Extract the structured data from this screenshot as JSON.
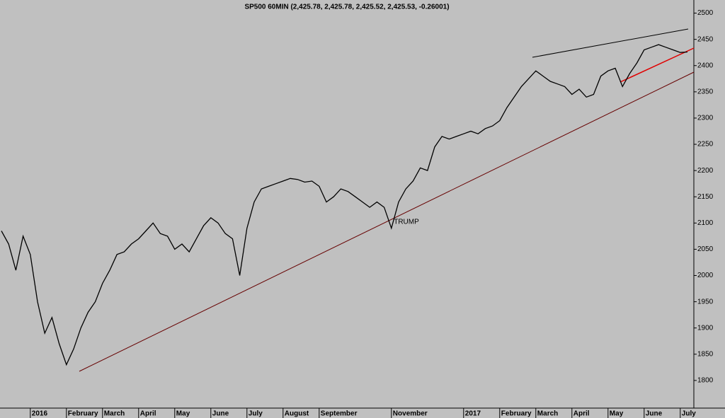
{
  "chart_data": {
    "type": "line",
    "title": "SP500 60MIN (2,425.78, 2,425.78, 2,425.52, 2,425.53, -0.26001)",
    "annotation": "TRUMP",
    "categories": [
      null,
      null,
      null,
      null,
      "2016",
      null,
      null,
      null,
      null,
      "February",
      null,
      null,
      null,
      null,
      "March",
      null,
      null,
      null,
      null,
      "April",
      null,
      null,
      null,
      null,
      "May",
      null,
      null,
      null,
      null,
      "June",
      null,
      null,
      null,
      null,
      "July",
      null,
      null,
      null,
      null,
      "August",
      null,
      null,
      null,
      null,
      "September",
      null,
      null,
      null,
      null,
      null,
      null,
      null,
      null,
      null,
      "November",
      null,
      null,
      null,
      null,
      null,
      null,
      null,
      null,
      null,
      "2017",
      null,
      null,
      null,
      null,
      "February",
      null,
      null,
      null,
      null,
      "March",
      null,
      null,
      null,
      null,
      "April",
      null,
      null,
      null,
      null,
      "May",
      null,
      null,
      null,
      null,
      "June",
      null,
      null,
      null,
      null,
      "July",
      null
    ],
    "series": [
      {
        "name": "SP500",
        "color": "#000000",
        "values": [
          2085,
          2060,
          2010,
          2075,
          2040,
          1950,
          1890,
          1920,
          1870,
          1830,
          1860,
          1900,
          1930,
          1950,
          1985,
          2010,
          2040,
          2045,
          2060,
          2070,
          2085,
          2100,
          2080,
          2075,
          2050,
          2060,
          2045,
          2070,
          2095,
          2110,
          2100,
          2080,
          2070,
          2000,
          2090,
          2140,
          2165,
          2170,
          2175,
          2180,
          2185,
          2183,
          2178,
          2180,
          2170,
          2140,
          2150,
          2165,
          2160,
          2150,
          2140,
          2130,
          2140,
          2130,
          2090,
          2140,
          2165,
          2180,
          2205,
          2200,
          2245,
          2265,
          2260,
          2265,
          2270,
          2275,
          2270,
          2280,
          2285,
          2295,
          2320,
          2340,
          2360,
          2375,
          2390,
          2380,
          2370,
          2365,
          2360,
          2345,
          2355,
          2340,
          2345,
          2380,
          2390,
          2395,
          2360,
          2385,
          2405,
          2430,
          2435,
          2440,
          2435,
          2430,
          2425,
          2426
        ]
      }
    ],
    "ylim": [
      1750,
      2525
    ],
    "yticks": [
      1800,
      1850,
      1900,
      1950,
      2000,
      2050,
      2100,
      2150,
      2200,
      2250,
      2300,
      2350,
      2400,
      2450,
      2500
    ],
    "grid": false
  }
}
